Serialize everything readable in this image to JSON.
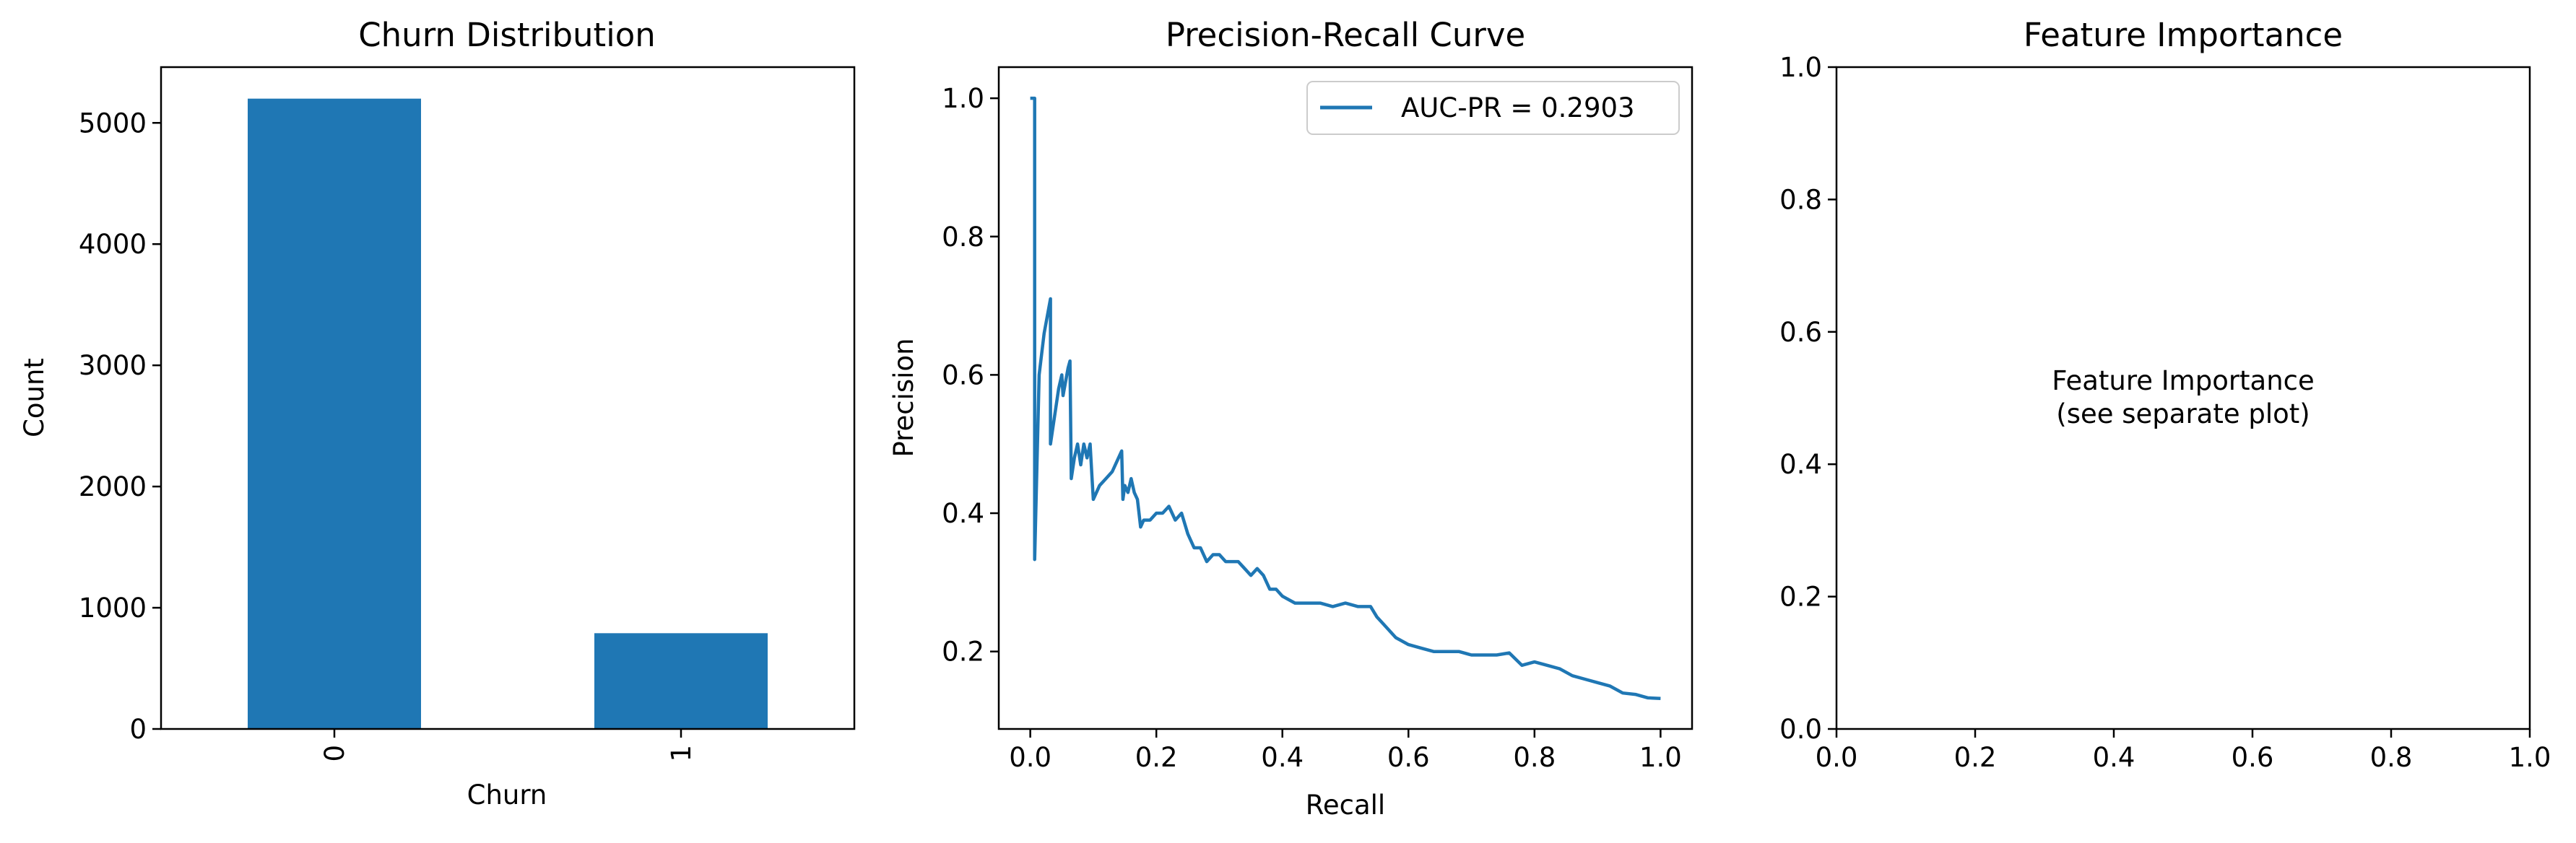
{
  "chart_data": [
    {
      "type": "bar",
      "title": "Churn Distribution",
      "xlabel": "Churn",
      "ylabel": "Count",
      "categories": [
        "0",
        "1"
      ],
      "values": [
        5200,
        790
      ],
      "ylim": [
        0,
        5460
      ],
      "yticks": [
        0,
        1000,
        2000,
        3000,
        4000,
        5000
      ],
      "ytick_labels": [
        "0",
        "1000",
        "2000",
        "3000",
        "4000",
        "5000"
      ],
      "color": "#1f77b4",
      "xtick_rotation": "vertical",
      "grid": false
    },
    {
      "type": "line",
      "title": "Precision-Recall Curve",
      "xlabel": "Recall",
      "ylabel": "Precision",
      "xlim": [
        -0.05,
        1.05
      ],
      "ylim": [
        0.088,
        1.045
      ],
      "xticks": [
        0.0,
        0.2,
        0.4,
        0.6,
        0.8,
        1.0
      ],
      "xtick_labels": [
        "0.0",
        "0.2",
        "0.4",
        "0.6",
        "0.8",
        "1.0"
      ],
      "yticks": [
        0.2,
        0.4,
        0.6,
        0.8,
        1.0
      ],
      "ytick_labels": [
        "0.2",
        "0.4",
        "0.6",
        "0.8",
        "1.0"
      ],
      "legend_position": "top-right",
      "grid": false,
      "series": [
        {
          "name": "AUC-PR = 0.2903",
          "color": "#1f77b4",
          "points": [
            [
              0.0,
              1.0
            ],
            [
              0.007,
              1.0
            ],
            [
              0.007,
              0.333
            ],
            [
              0.014,
              0.6
            ],
            [
              0.022,
              0.66
            ],
            [
              0.032,
              0.71
            ],
            [
              0.032,
              0.5
            ],
            [
              0.045,
              0.58
            ],
            [
              0.05,
              0.6
            ],
            [
              0.052,
              0.57
            ],
            [
              0.06,
              0.61
            ],
            [
              0.063,
              0.62
            ],
            [
              0.065,
              0.45
            ],
            [
              0.07,
              0.48
            ],
            [
              0.075,
              0.5
            ],
            [
              0.08,
              0.47
            ],
            [
              0.085,
              0.5
            ],
            [
              0.09,
              0.48
            ],
            [
              0.095,
              0.5
            ],
            [
              0.098,
              0.45
            ],
            [
              0.1,
              0.42
            ],
            [
              0.11,
              0.44
            ],
            [
              0.12,
              0.45
            ],
            [
              0.13,
              0.46
            ],
            [
              0.14,
              0.48
            ],
            [
              0.145,
              0.49
            ],
            [
              0.147,
              0.42
            ],
            [
              0.15,
              0.44
            ],
            [
              0.155,
              0.43
            ],
            [
              0.16,
              0.45
            ],
            [
              0.165,
              0.43
            ],
            [
              0.17,
              0.42
            ],
            [
              0.175,
              0.38
            ],
            [
              0.18,
              0.39
            ],
            [
              0.19,
              0.39
            ],
            [
              0.2,
              0.4
            ],
            [
              0.21,
              0.4
            ],
            [
              0.22,
              0.41
            ],
            [
              0.23,
              0.39
            ],
            [
              0.24,
              0.4
            ],
            [
              0.25,
              0.37
            ],
            [
              0.26,
              0.35
            ],
            [
              0.27,
              0.35
            ],
            [
              0.28,
              0.33
            ],
            [
              0.29,
              0.34
            ],
            [
              0.3,
              0.34
            ],
            [
              0.31,
              0.33
            ],
            [
              0.32,
              0.33
            ],
            [
              0.33,
              0.33
            ],
            [
              0.34,
              0.32
            ],
            [
              0.35,
              0.31
            ],
            [
              0.36,
              0.32
            ],
            [
              0.37,
              0.31
            ],
            [
              0.38,
              0.29
            ],
            [
              0.39,
              0.29
            ],
            [
              0.4,
              0.28
            ],
            [
              0.42,
              0.27
            ],
            [
              0.44,
              0.27
            ],
            [
              0.46,
              0.27
            ],
            [
              0.48,
              0.265
            ],
            [
              0.5,
              0.27
            ],
            [
              0.52,
              0.265
            ],
            [
              0.54,
              0.265
            ],
            [
              0.55,
              0.25
            ],
            [
              0.56,
              0.24
            ],
            [
              0.58,
              0.22
            ],
            [
              0.6,
              0.21
            ],
            [
              0.62,
              0.205
            ],
            [
              0.64,
              0.2
            ],
            [
              0.66,
              0.2
            ],
            [
              0.68,
              0.2
            ],
            [
              0.7,
              0.195
            ],
            [
              0.72,
              0.195
            ],
            [
              0.74,
              0.195
            ],
            [
              0.76,
              0.198
            ],
            [
              0.78,
              0.18
            ],
            [
              0.8,
              0.185
            ],
            [
              0.82,
              0.18
            ],
            [
              0.84,
              0.175
            ],
            [
              0.86,
              0.165
            ],
            [
              0.88,
              0.16
            ],
            [
              0.9,
              0.155
            ],
            [
              0.92,
              0.15
            ],
            [
              0.94,
              0.14
            ],
            [
              0.96,
              0.138
            ],
            [
              0.98,
              0.133
            ],
            [
              1.0,
              0.132
            ]
          ]
        }
      ]
    },
    {
      "type": "text",
      "title": "Feature Importance",
      "xlim": [
        0,
        1
      ],
      "ylim": [
        0,
        1
      ],
      "xticks": [
        0.0,
        0.2,
        0.4,
        0.6,
        0.8,
        1.0
      ],
      "xtick_labels": [
        "0.0",
        "0.2",
        "0.4",
        "0.6",
        "0.8",
        "1.0"
      ],
      "yticks": [
        0.0,
        0.2,
        0.4,
        0.6,
        0.8,
        1.0
      ],
      "ytick_labels": [
        "0.0",
        "0.2",
        "0.4",
        "0.6",
        "0.8",
        "1.0"
      ],
      "annotation": [
        "Feature Importance",
        "(see separate plot)"
      ],
      "annotation_position": [
        0.5,
        0.5
      ],
      "grid": false
    }
  ]
}
